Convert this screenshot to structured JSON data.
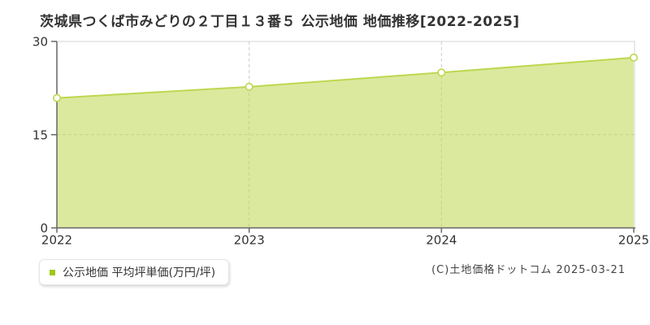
{
  "title": "茨城県つくば市みどりの２丁目１３番５ 公示地価 地価推移[2022-2025]",
  "legend": {
    "label": "公示地価 平均坪単価(万円/坪)",
    "marker_color": "#a0c814"
  },
  "footer": {
    "copyright": "(C)土地価格ドットコム 2025-03-21"
  },
  "colors": {
    "series": "#bdd74f",
    "fill_opacity": 0.55,
    "marker_fill": "#ffffff",
    "axis": "#666666",
    "grid": "#cccccc",
    "border": "#dddddd",
    "tick_text": "#333333"
  },
  "chart_data": {
    "type": "area",
    "x": [
      2022,
      2023,
      2024,
      2025
    ],
    "series": [
      {
        "name": "公示地価 平均坪単価(万円/坪)",
        "values": [
          20.9,
          22.7,
          25.0,
          27.4
        ]
      }
    ],
    "title": "茨城県つくば市みどりの２丁目１３番５ 公示地価 地価推移[2022-2025]",
    "xlabel": "",
    "ylabel": "万円/坪",
    "ylim": [
      0,
      30
    ],
    "yticks": [
      0,
      15,
      30
    ],
    "grid": true,
    "legend_position": "bottom-left"
  }
}
